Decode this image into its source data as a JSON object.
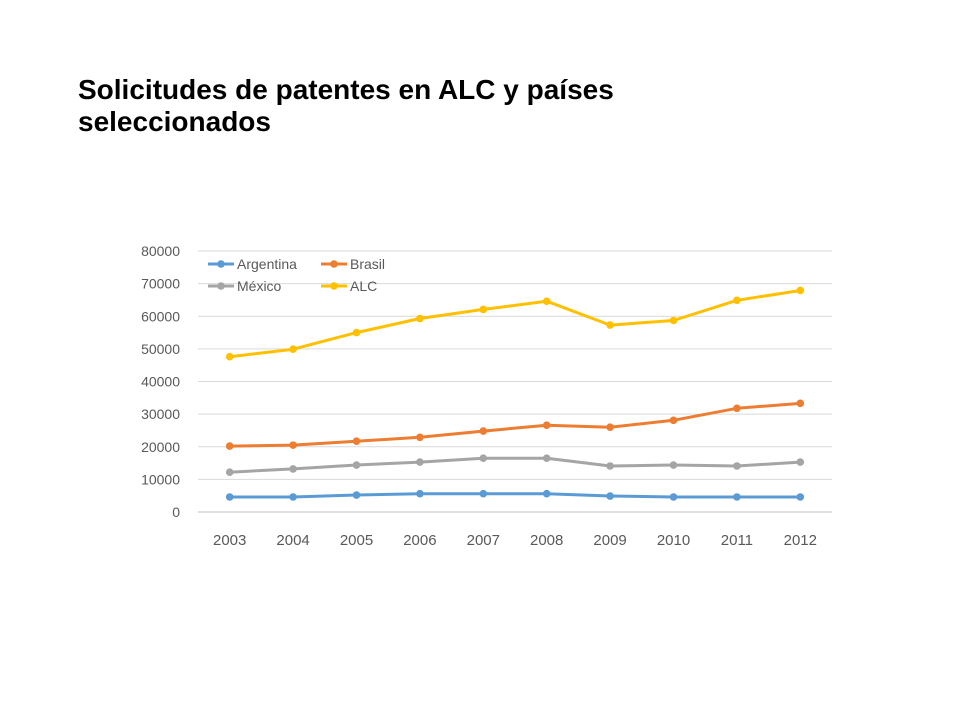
{
  "title_lines": [
    "Solicitudes de patentes en ALC y países",
    "seleccionados"
  ],
  "chart_data": {
    "type": "line",
    "title": "Solicitudes de patentes en ALC y países seleccionados",
    "x": [
      "2003",
      "2004",
      "2005",
      "2006",
      "2007",
      "2008",
      "2009",
      "2010",
      "2011",
      "2012"
    ],
    "series": [
      {
        "name": "Argentina",
        "color": "#5B9BD5",
        "values": [
          4600,
          4600,
          5200,
          5600,
          5600,
          5600,
          4900,
          4600,
          4600,
          4600
        ]
      },
      {
        "name": "Brasil",
        "color": "#ED7D31",
        "values": [
          20200,
          20500,
          21700,
          22900,
          24800,
          26600,
          26000,
          28100,
          31800,
          33300
        ]
      },
      {
        "name": "México",
        "color": "#A5A5A5",
        "values": [
          12200,
          13200,
          14400,
          15300,
          16500,
          16500,
          14100,
          14400,
          14100,
          15300
        ]
      },
      {
        "name": "ALC",
        "color": "#FFC000",
        "values": [
          47600,
          49900,
          55000,
          59300,
          62100,
          64600,
          57300,
          58700,
          64900,
          67900
        ]
      }
    ],
    "yticks": [
      "0",
      "10000",
      "20000",
      "30000",
      "40000",
      "50000",
      "60000",
      "70000",
      "80000"
    ],
    "ylim": [
      0,
      80000
    ],
    "grid": true,
    "legend_position": "top-left"
  }
}
